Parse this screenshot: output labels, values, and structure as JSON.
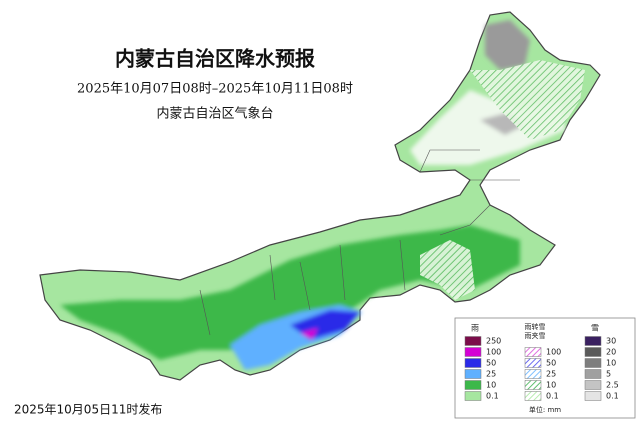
{
  "header": {
    "title": "内蒙古自治区降水预报",
    "period": "2025年10月07日08时–2025年10月11日08时",
    "issuer": "内蒙古自治区气象台"
  },
  "footer": {
    "published": "2025年10月05日11时发布"
  },
  "legend": {
    "groups": [
      {
        "title": "雨",
        "hatched": false,
        "items": [
          {
            "value": 250,
            "color": "#7b0d4a"
          },
          {
            "value": 100,
            "color": "#d400d4"
          },
          {
            "value": 50,
            "color": "#2a2ae8"
          },
          {
            "value": 25,
            "color": "#5fb0ff"
          },
          {
            "value": 10,
            "color": "#3cb84a"
          },
          {
            "value": 0.1,
            "color": "#a6e6a0"
          }
        ]
      },
      {
        "title": "雨转雪",
        "subtitle": "雨夹雪",
        "hatched": true,
        "items": [
          {
            "value": 100,
            "color": "#e070e0"
          },
          {
            "value": 50,
            "color": "#6a6af0"
          },
          {
            "value": 25,
            "color": "#80c0ff"
          },
          {
            "value": 10,
            "color": "#60c070"
          },
          {
            "value": 0.1,
            "color": "#b8ecb0"
          }
        ]
      },
      {
        "title": "雪",
        "hatched": false,
        "items": [
          {
            "value": 30,
            "color": "#3a2060"
          },
          {
            "value": 20,
            "color": "#5a5a5a"
          },
          {
            "value": 10,
            "color": "#7e7e7e"
          },
          {
            "value": 5,
            "color": "#a0a0a0"
          },
          {
            "value": 2.5,
            "color": "#c4c4c4"
          },
          {
            "value": 0.1,
            "color": "#e4e4e4"
          }
        ]
      }
    ],
    "unit": "单位: mm"
  }
}
